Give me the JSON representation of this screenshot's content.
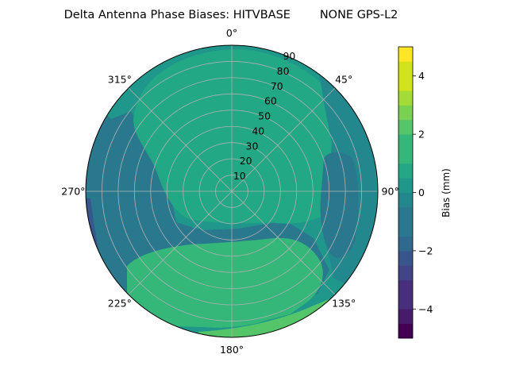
{
  "chart_data": {
    "type": "polar-contour",
    "title": "Delta Antenna Phase Biases: HITVBASE        NONE GPS-L2",
    "angle_tick_labels": [
      "0°",
      "45°",
      "90°",
      "135°",
      "180°",
      "225°",
      "270°",
      "315°"
    ],
    "angle_ticks_deg": [
      0,
      45,
      90,
      135,
      180,
      225,
      270,
      315
    ],
    "radial_tick_labels": [
      "10",
      "20",
      "30",
      "40",
      "50",
      "60",
      "70",
      "80",
      "90"
    ],
    "radial_ticks": [
      10,
      20,
      30,
      40,
      50,
      60,
      70,
      80,
      90
    ],
    "rlim": [
      0,
      90
    ],
    "theta_zero": "north",
    "theta_direction": "clockwise",
    "grid": true,
    "colorbar": {
      "label": "Bias (mm)",
      "tick_labels": [
        "−4",
        "−2",
        "0",
        "2",
        "4"
      ],
      "ticks": [
        -4,
        -2,
        0,
        2,
        4
      ],
      "range": [
        -5,
        5
      ],
      "levels": [
        -5,
        -4.5,
        -4,
        -3.5,
        -3,
        -2.5,
        -2,
        -1.5,
        -1,
        -0.5,
        0,
        0.5,
        1,
        1.5,
        2,
        2.5,
        3,
        3.5,
        4,
        4.5,
        5
      ],
      "colormap": "viridis"
    },
    "colors": [
      "#440154",
      "#481a6c",
      "#472f7d",
      "#414487",
      "#39568c",
      "#31688e",
      "#2a788e",
      "#23888e",
      "#1f988b",
      "#22a884",
      "#35b779",
      "#54c568",
      "#7ad151",
      "#a5db36",
      "#d2e21b",
      "#fde725"
    ],
    "regions": [
      {
        "name": "background",
        "value": 0.25
      },
      {
        "name": "upper-ring",
        "value": 0.75
      },
      {
        "name": "left-band",
        "value": -0.75
      },
      {
        "name": "left-edge",
        "value": -1.25
      },
      {
        "name": "left-edge-deep",
        "value": -2.25
      },
      {
        "name": "lower-left-band",
        "value": -0.75
      },
      {
        "name": "east-spot",
        "value": -1.25
      },
      {
        "name": "east-ring",
        "value": -0.75
      },
      {
        "name": "ne-band",
        "value": -0.25
      },
      {
        "name": "south-band",
        "value": 1.25
      },
      {
        "name": "south-core",
        "value": 1.75
      },
      {
        "name": "south-rim",
        "value": 2.25
      }
    ]
  }
}
